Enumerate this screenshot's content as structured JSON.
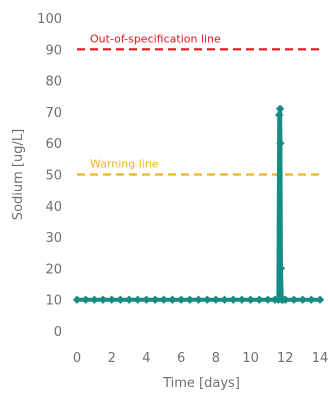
{
  "chart_data": {
    "type": "line",
    "title": "",
    "xlabel": "Time [days]",
    "ylabel": "Sodium [ug/L]",
    "xlim": [
      0,
      14
    ],
    "ylim": [
      0,
      100
    ],
    "x_ticks": [
      "0",
      "2",
      "4",
      "6",
      "8",
      "10",
      "12",
      "14"
    ],
    "y_ticks": [
      "0",
      "10",
      "20",
      "30",
      "40",
      "50",
      "60",
      "70",
      "80",
      "90",
      "100"
    ],
    "grid": false,
    "series": [
      {
        "color": "#168c85",
        "x": [
          0,
          0.5,
          1,
          1.5,
          2,
          2.5,
          3,
          3.5,
          4,
          4.5,
          5,
          5.5,
          6,
          6.5,
          7,
          7.5,
          8,
          8.5,
          9,
          9.5,
          10,
          10.5,
          11,
          11.4,
          11.6,
          11.65,
          11.7,
          11.72,
          11.75,
          11.8,
          11.85,
          12.0,
          12.5,
          13,
          13.5,
          14
        ],
        "y": [
          10,
          10,
          10,
          10,
          10,
          10,
          10,
          10,
          10,
          10,
          10,
          10,
          10,
          10,
          10,
          10,
          10,
          10,
          10,
          10,
          10,
          10,
          10,
          10,
          10,
          69,
          71,
          60,
          20,
          10,
          10,
          10,
          10,
          10,
          10,
          10
        ]
      }
    ],
    "reference_lines": [
      {
        "label": "Out-of-specification line",
        "y": 90,
        "color": "#e8141b"
      },
      {
        "label": "Warning line",
        "y": 50,
        "color": "#f0b41c"
      }
    ]
  }
}
